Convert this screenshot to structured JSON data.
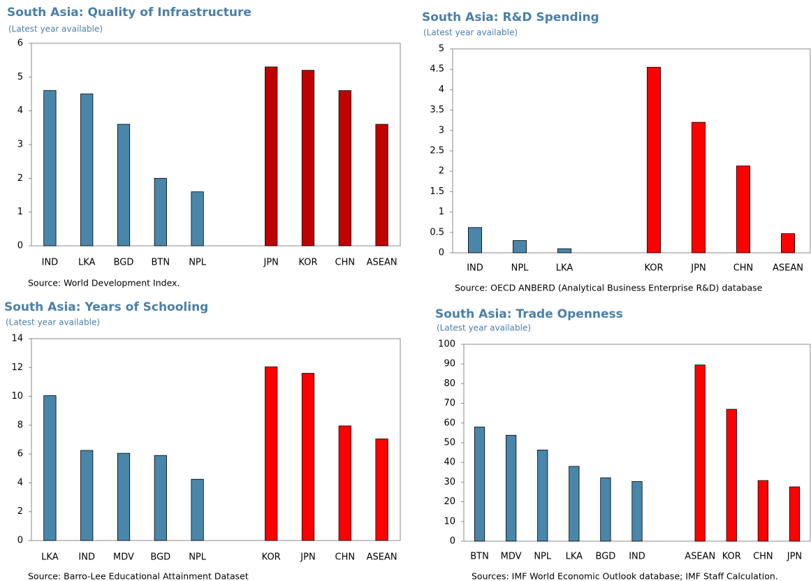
{
  "chart_data": [
    {
      "type": "bar",
      "title": "South Asia: Quality of Infrastructure",
      "subtitle": "(Latest year available)",
      "categories": [
        "IND",
        "LKA",
        "BGD",
        "BTN",
        "NPL",
        null,
        "JPN",
        "KOR",
        "CHN",
        "ASEAN"
      ],
      "values": [
        4.6,
        4.5,
        3.6,
        2.0,
        1.6,
        null,
        5.3,
        5.2,
        4.6,
        3.6
      ],
      "colors": [
        "#4a86aa",
        "#4a86aa",
        "#4a86aa",
        "#4a86aa",
        "#4a86aa",
        null,
        "#c00000",
        "#c00000",
        "#c00000",
        "#c00000"
      ],
      "ylim": [
        0,
        6
      ],
      "yticks": [
        0,
        1,
        2,
        3,
        4,
        5,
        6
      ],
      "grid": false,
      "source": "Source:  World Development Index."
    },
    {
      "type": "bar",
      "title": "South Asia: R&D Spending",
      "subtitle": "(Latest year available)",
      "categories": [
        "IND",
        "NPL",
        "LKA",
        null,
        "KOR",
        "JPN",
        "CHN",
        "ASEAN"
      ],
      "values": [
        0.62,
        0.3,
        0.1,
        null,
        4.55,
        3.2,
        2.13,
        0.47
      ],
      "colors": [
        "#4a86aa",
        "#4a86aa",
        "#4a86aa",
        null,
        "#ff0000",
        "#ff0000",
        "#ff0000",
        "#ff0000"
      ],
      "ylim": [
        0,
        5
      ],
      "yticks": [
        0,
        0.5,
        1,
        1.5,
        2,
        2.5,
        3,
        3.5,
        4,
        4.5,
        5
      ],
      "grid": false,
      "source": "Source: OECD ANBERD (Analytical Business Enterprise R&D) database"
    },
    {
      "type": "bar",
      "title": "South Asia: Years of Schooling",
      "subtitle": "(Latest year available)",
      "categories": [
        "LKA",
        "IND",
        "MDV",
        "BGD",
        "NPL",
        null,
        "KOR",
        "JPN",
        "CHN",
        "ASEAN"
      ],
      "values": [
        10.05,
        6.25,
        6.05,
        5.9,
        4.25,
        null,
        12.05,
        11.6,
        7.95,
        7.05
      ],
      "colors": [
        "#4a86aa",
        "#4a86aa",
        "#4a86aa",
        "#4a86aa",
        "#4a86aa",
        null,
        "#ff0000",
        "#ff0000",
        "#ff0000",
        "#ff0000"
      ],
      "ylim": [
        0,
        14
      ],
      "yticks": [
        0,
        2,
        4,
        6,
        8,
        10,
        12,
        14
      ],
      "grid": false,
      "source": "Source: Barro-Lee Educational Attainment Dataset"
    },
    {
      "type": "bar",
      "title": "South Asia: Trade Openness",
      "subtitle": "(Latest year available)",
      "categories": [
        "BTN",
        "MDV",
        "NPL",
        "LKA",
        "BGD",
        "IND",
        null,
        "ASEAN",
        "KOR",
        "CHN",
        "JPN"
      ],
      "values": [
        58,
        53.8,
        46.3,
        38,
        32.2,
        30.3,
        null,
        89.5,
        67,
        30.8,
        27.6
      ],
      "colors": [
        "#4a86aa",
        "#4a86aa",
        "#4a86aa",
        "#4a86aa",
        "#4a86aa",
        "#4a86aa",
        null,
        "#ff0000",
        "#ff0000",
        "#ff0000",
        "#ff0000"
      ],
      "ylim": [
        0,
        100
      ],
      "yticks": [
        0,
        10,
        20,
        30,
        40,
        50,
        60,
        70,
        80,
        90,
        100
      ],
      "grid": false,
      "source": "Sources: IMF World Economic Outlook database; IMF Staff Calculation."
    }
  ]
}
